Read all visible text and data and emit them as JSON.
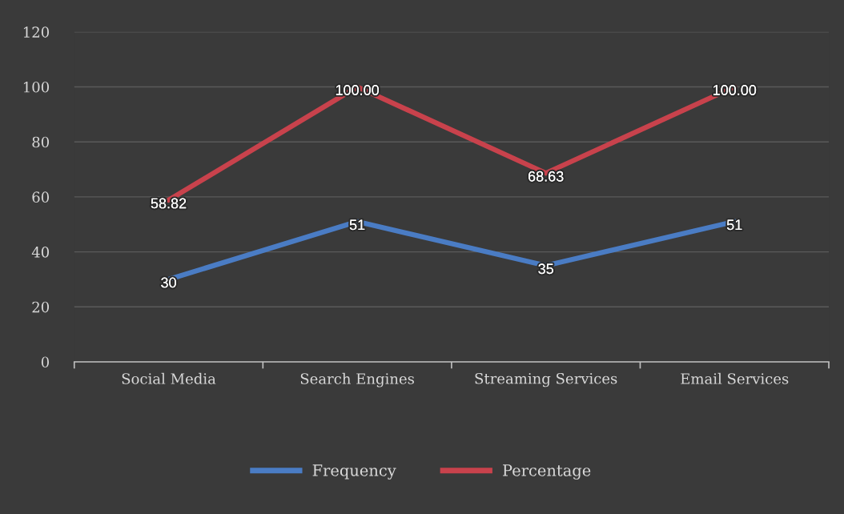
{
  "chart_data": {
    "type": "line",
    "categories": [
      "Social Media",
      "Search Engines",
      "Streaming Services",
      "Email Services"
    ],
    "series": [
      {
        "name": "Frequency",
        "color": "#4a7cc4",
        "values": [
          30,
          51,
          35,
          51
        ],
        "value_labels": [
          "30",
          "51",
          "35",
          "51"
        ]
      },
      {
        "name": "Percentage",
        "color": "#c8424c",
        "values": [
          58.82,
          100.0,
          68.63,
          100.0
        ],
        "value_labels": [
          "58.82",
          "100.00",
          "68.63",
          "100.00"
        ]
      }
    ],
    "ylim": [
      0,
      120
    ],
    "yticks": [
      0,
      20,
      40,
      60,
      80,
      100,
      120
    ],
    "grid": "y",
    "legend": "bottom",
    "line_style": "solid"
  }
}
